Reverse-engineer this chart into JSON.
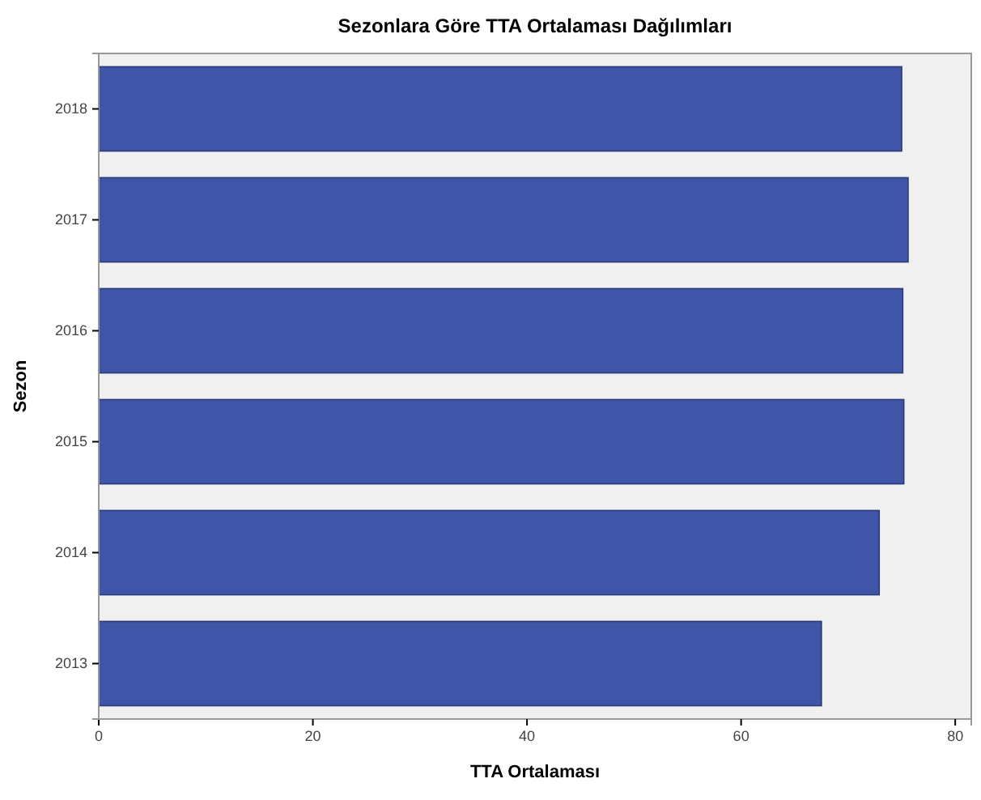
{
  "chart_data": {
    "type": "bar",
    "orientation": "horizontal",
    "title": "Sezonlara Göre TTA Ortalaması Dağılımları",
    "xlabel": "TTA Ortalaması",
    "ylabel": "Sezon",
    "categories": [
      "2018",
      "2017",
      "2016",
      "2015",
      "2014",
      "2013"
    ],
    "values": [
      75.0,
      75.6,
      75.1,
      75.2,
      72.9,
      67.5
    ],
    "color": "#3f56a8",
    "xlim": [
      0,
      81.5
    ],
    "xticks": [
      0,
      20,
      40,
      60,
      80
    ],
    "grid": false
  }
}
